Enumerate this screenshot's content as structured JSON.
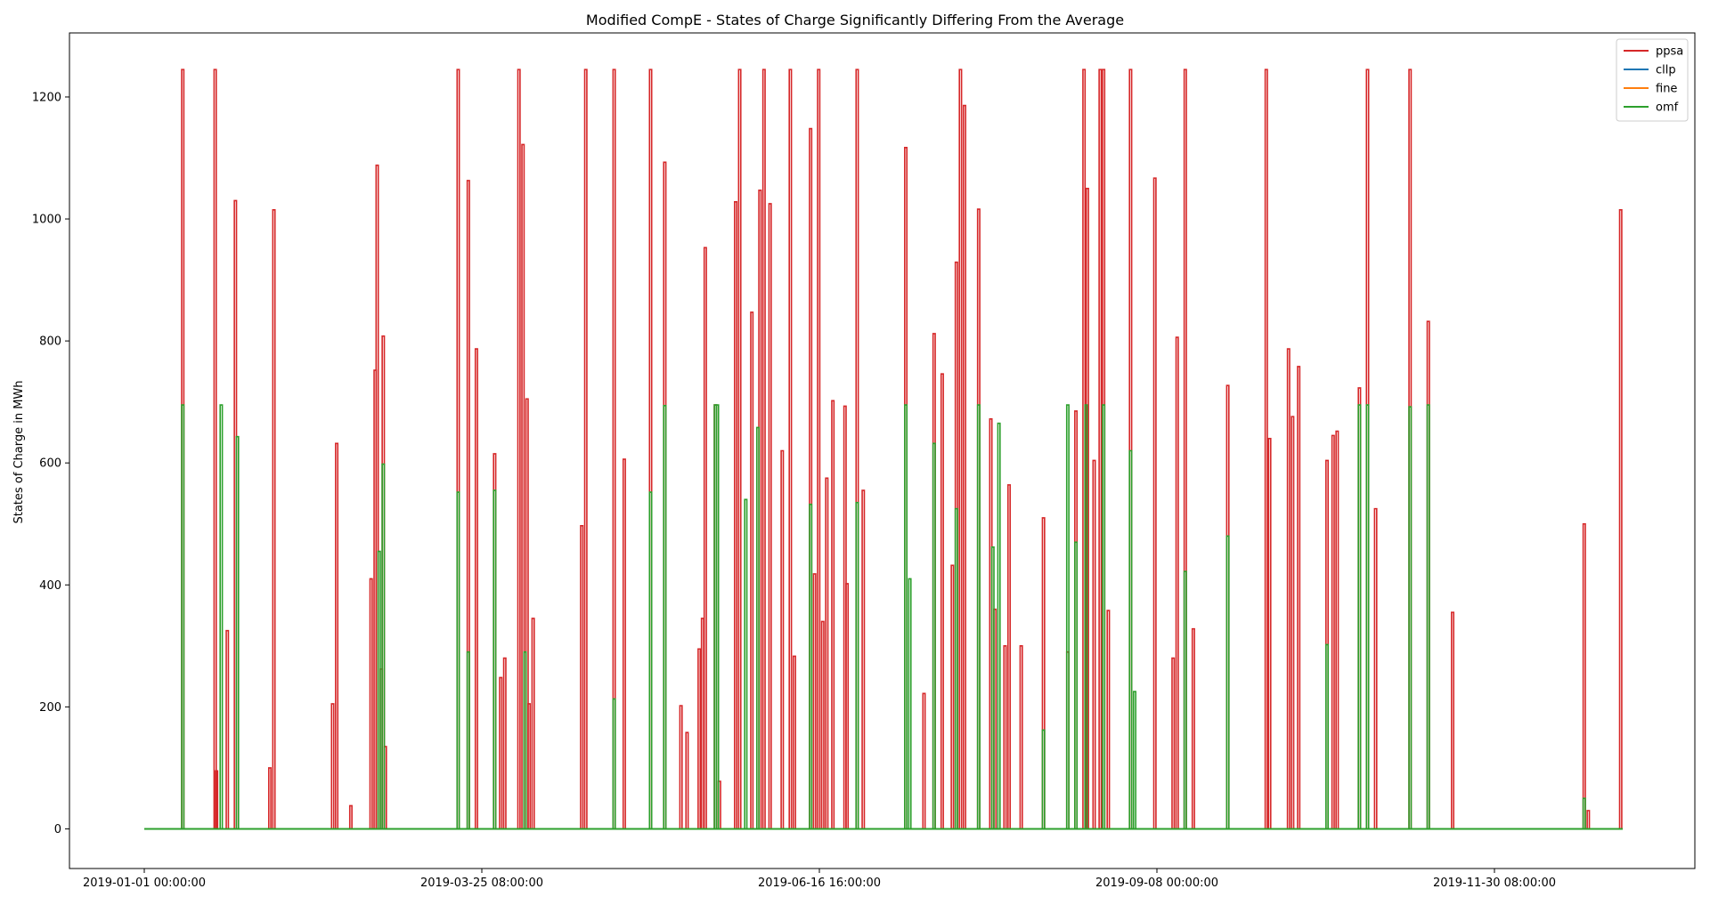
{
  "chart_data": {
    "type": "line",
    "title": "Modified CompE - States of Charge Significantly Differing From the Average",
    "xlabel": "",
    "ylabel": "States of Charge in MWh",
    "x_range": [
      "2019-01-01 00:00:00",
      "2020-01-01 00:00:00"
    ],
    "ylim": [
      -65,
      1305
    ],
    "x_ticks": [
      "2019-01-01 00:00:00",
      "2019-03-25 08:00:00",
      "2019-06-16 16:00:00",
      "2019-09-08 00:00:00",
      "2019-11-30 08:00:00"
    ],
    "y_ticks": [
      0,
      200,
      400,
      600,
      800,
      1000,
      1200
    ],
    "grid": false,
    "legend_position": "top-right",
    "series": [
      {
        "name": "ppsa",
        "color": "#d62728",
        "spikes": [
          [
            "2019-01-10 12:00:00",
            1245
          ],
          [
            "2019-01-18 12:00:00",
            1245
          ],
          [
            "2019-01-18 20:00:00",
            95
          ],
          [
            "2019-01-21 12:00:00",
            325
          ],
          [
            "2019-01-23 12:00:00",
            1030
          ],
          [
            "2019-02-01 00:00:00",
            100
          ],
          [
            "2019-02-02 00:00:00",
            1015
          ],
          [
            "2019-02-16 12:00:00",
            205
          ],
          [
            "2019-02-17 12:00:00",
            632
          ],
          [
            "2019-02-21 00:00:00",
            38
          ],
          [
            "2019-02-26 00:00:00",
            410
          ],
          [
            "2019-02-27 00:00:00",
            752
          ],
          [
            "2019-02-27 12:00:00",
            1088
          ],
          [
            "2019-02-28 12:00:00",
            262
          ],
          [
            "2019-03-01 00:00:00",
            808
          ],
          [
            "2019-03-01 12:00:00",
            135
          ],
          [
            "2019-03-19 12:00:00",
            1245
          ],
          [
            "2019-03-22 00:00:00",
            1063
          ],
          [
            "2019-03-24 00:00:00",
            787
          ],
          [
            "2019-03-28 12:00:00",
            615
          ],
          [
            "2019-03-30 00:00:00",
            248
          ],
          [
            "2019-03-31 00:00:00",
            280
          ],
          [
            "2019-04-03 12:00:00",
            1245
          ],
          [
            "2019-04-04 12:00:00",
            1122
          ],
          [
            "2019-04-05 12:00:00",
            705
          ],
          [
            "2019-04-06 00:00:00",
            205
          ],
          [
            "2019-04-07 00:00:00",
            345
          ],
          [
            "2019-04-19 00:00:00",
            497
          ],
          [
            "2019-04-20 00:00:00",
            1245
          ],
          [
            "2019-04-27 00:00:00",
            1245
          ],
          [
            "2019-04-29 12:00:00",
            606
          ],
          [
            "2019-05-06 00:00:00",
            1245
          ],
          [
            "2019-05-09 12:00:00",
            1093
          ],
          [
            "2019-05-13 12:00:00",
            202
          ],
          [
            "2019-05-15 00:00:00",
            158
          ],
          [
            "2019-05-18 00:00:00",
            295
          ],
          [
            "2019-05-18 20:00:00",
            345
          ],
          [
            "2019-05-19 12:00:00",
            953
          ],
          [
            "2019-05-22 00:00:00",
            695
          ],
          [
            "2019-05-23 00:00:00",
            78
          ],
          [
            "2019-05-27 00:00:00",
            1028
          ],
          [
            "2019-05-28 00:00:00",
            1245
          ],
          [
            "2019-05-31 00:00:00",
            847
          ],
          [
            "2019-06-02 00:00:00",
            1047
          ],
          [
            "2019-06-03 00:00:00",
            1245
          ],
          [
            "2019-06-04 12:00:00",
            1025
          ],
          [
            "2019-06-07 12:00:00",
            620
          ],
          [
            "2019-06-09 12:00:00",
            1245
          ],
          [
            "2019-06-10 12:00:00",
            283
          ],
          [
            "2019-06-14 12:00:00",
            1148
          ],
          [
            "2019-06-15 12:00:00",
            418
          ],
          [
            "2019-06-16 12:00:00",
            1245
          ],
          [
            "2019-06-17 12:00:00",
            340
          ],
          [
            "2019-06-18 12:00:00",
            575
          ],
          [
            "2019-06-20 00:00:00",
            702
          ],
          [
            "2019-06-23 00:00:00",
            693
          ],
          [
            "2019-06-23 12:00:00",
            402
          ],
          [
            "2019-06-26 00:00:00",
            1245
          ],
          [
            "2019-06-27 12:00:00",
            555
          ],
          [
            "2019-07-08 00:00:00",
            1117
          ],
          [
            "2019-07-12 12:00:00",
            222
          ],
          [
            "2019-07-15 00:00:00",
            812
          ],
          [
            "2019-07-17 00:00:00",
            746
          ],
          [
            "2019-07-19 12:00:00",
            432
          ],
          [
            "2019-07-20 12:00:00",
            929
          ],
          [
            "2019-07-21 12:00:00",
            1245
          ],
          [
            "2019-07-22 12:00:00",
            1186
          ],
          [
            "2019-07-26 00:00:00",
            1016
          ],
          [
            "2019-07-29 00:00:00",
            672
          ],
          [
            "2019-07-30 00:00:00",
            360
          ],
          [
            "2019-08-01 12:00:00",
            300
          ],
          [
            "2019-08-02 12:00:00",
            564
          ],
          [
            "2019-08-05 12:00:00",
            300
          ],
          [
            "2019-08-11 00:00:00",
            510
          ],
          [
            "2019-08-17 00:00:00",
            290
          ],
          [
            "2019-08-19 00:00:00",
            685
          ],
          [
            "2019-08-21 00:00:00",
            1245
          ],
          [
            "2019-08-21 20:00:00",
            1050
          ],
          [
            "2019-08-23 12:00:00",
            604
          ],
          [
            "2019-08-25 00:00:00",
            1245
          ],
          [
            "2019-08-25 20:00:00",
            1245
          ],
          [
            "2019-08-27 00:00:00",
            358
          ],
          [
            "2019-09-01 12:00:00",
            1245
          ],
          [
            "2019-09-07 12:00:00",
            1067
          ],
          [
            "2019-09-12 00:00:00",
            280
          ],
          [
            "2019-09-13 00:00:00",
            806
          ],
          [
            "2019-09-15 00:00:00",
            1245
          ],
          [
            "2019-09-17 00:00:00",
            328
          ],
          [
            "2019-09-25 12:00:00",
            727
          ],
          [
            "2019-10-05 00:00:00",
            1245
          ],
          [
            "2019-10-05 20:00:00",
            640
          ],
          [
            "2019-10-10 12:00:00",
            787
          ],
          [
            "2019-10-11 12:00:00",
            676
          ],
          [
            "2019-10-13 00:00:00",
            758
          ],
          [
            "2019-10-20 00:00:00",
            604
          ],
          [
            "2019-10-21 12:00:00",
            645
          ],
          [
            "2019-10-22 12:00:00",
            652
          ],
          [
            "2019-10-28 00:00:00",
            723
          ],
          [
            "2019-10-30 00:00:00",
            1245
          ],
          [
            "2019-11-01 00:00:00",
            525
          ],
          [
            "2019-11-09 12:00:00",
            1245
          ],
          [
            "2019-11-14 00:00:00",
            832
          ],
          [
            "2019-11-20 00:00:00",
            355
          ],
          [
            "2019-12-22 12:00:00",
            500
          ],
          [
            "2019-12-23 12:00:00",
            30
          ],
          [
            "2019-12-31 12:00:00",
            1015
          ]
        ]
      },
      {
        "name": "cllp",
        "color": "#1f77b4",
        "spikes": []
      },
      {
        "name": "fine",
        "color": "#ff7f0e",
        "spikes": []
      },
      {
        "name": "omf",
        "color": "#2ca02c",
        "spikes": [
          [
            "2019-01-10 12:00:00",
            695
          ],
          [
            "2019-01-20 00:00:00",
            695
          ],
          [
            "2019-01-24 00:00:00",
            643
          ],
          [
            "2019-02-28 00:00:00",
            455
          ],
          [
            "2019-03-01 00:00:00",
            598
          ],
          [
            "2019-03-19 12:00:00",
            552
          ],
          [
            "2019-03-22 00:00:00",
            290
          ],
          [
            "2019-03-28 12:00:00",
            555
          ],
          [
            "2019-04-05 00:00:00",
            290
          ],
          [
            "2019-04-27 00:00:00",
            213
          ],
          [
            "2019-05-06 00:00:00",
            552
          ],
          [
            "2019-05-09 12:00:00",
            694
          ],
          [
            "2019-05-22 00:00:00",
            695
          ],
          [
            "2019-05-22 12:00:00",
            695
          ],
          [
            "2019-05-29 12:00:00",
            540
          ],
          [
            "2019-06-01 12:00:00",
            658
          ],
          [
            "2019-06-14 12:00:00",
            532
          ],
          [
            "2019-06-26 00:00:00",
            535
          ],
          [
            "2019-07-08 00:00:00",
            695
          ],
          [
            "2019-07-09 00:00:00",
            410
          ],
          [
            "2019-07-15 00:00:00",
            632
          ],
          [
            "2019-07-20 12:00:00",
            525
          ],
          [
            "2019-07-26 00:00:00",
            695
          ],
          [
            "2019-07-29 12:00:00",
            462
          ],
          [
            "2019-07-31 00:00:00",
            665
          ],
          [
            "2019-08-11 00:00:00",
            162
          ],
          [
            "2019-08-17 00:00:00",
            695
          ],
          [
            "2019-08-19 00:00:00",
            470
          ],
          [
            "2019-08-21 12:00:00",
            695
          ],
          [
            "2019-08-25 20:00:00",
            695
          ],
          [
            "2019-09-01 12:00:00",
            620
          ],
          [
            "2019-09-02 12:00:00",
            225
          ],
          [
            "2019-09-15 00:00:00",
            422
          ],
          [
            "2019-09-25 12:00:00",
            480
          ],
          [
            "2019-10-20 00:00:00",
            302
          ],
          [
            "2019-10-28 00:00:00",
            695
          ],
          [
            "2019-10-30 00:00:00",
            695
          ],
          [
            "2019-11-09 12:00:00",
            692
          ],
          [
            "2019-11-14 00:00:00",
            695
          ],
          [
            "2019-12-22 12:00:00",
            50
          ]
        ]
      }
    ]
  }
}
